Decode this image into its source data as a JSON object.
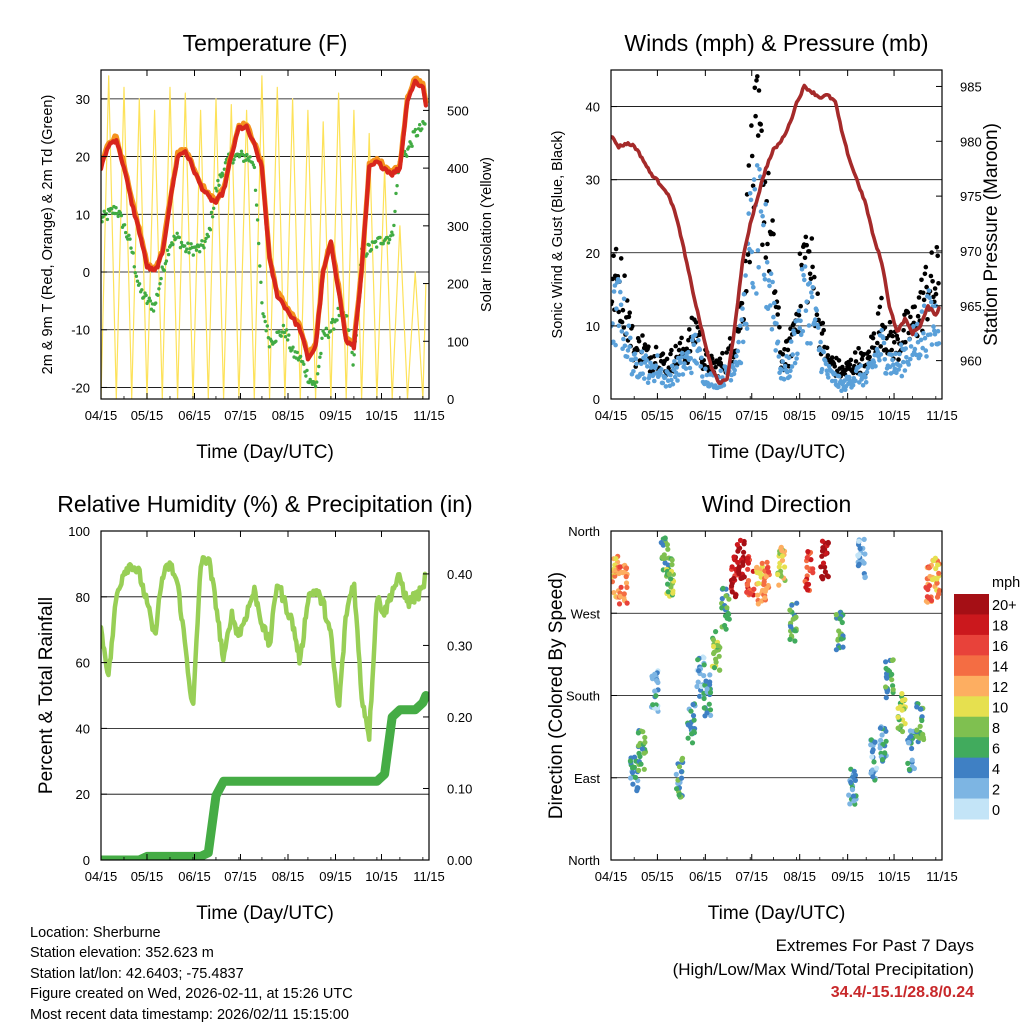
{
  "xtick_labels": [
    "04/15",
    "05/15",
    "06/15",
    "07/15",
    "08/15",
    "09/15",
    "10/15",
    "11/15"
  ],
  "xlabel": "Time (Day/UTC)",
  "colors": {
    "t2m": "#d8261c",
    "t9m": "#f5921e",
    "td": "#41ab43",
    "solar": "#fde25a",
    "sonic": "#5aa0d9",
    "gust": "#000000",
    "pressure": "#a52a2a",
    "rh": "#98cf56",
    "rain": "#45ac45",
    "extremes": "#c8282a"
  },
  "chart_data": [
    {
      "id": "temperature",
      "type": "line",
      "title": "Temperature (F)",
      "ylabel": "2m & 9m T (Red, Orange) & 2m Td (Green)",
      "y2label": "Solar Insolation (Yellow)",
      "ylim": [
        -22,
        35
      ],
      "yticks": [
        -20,
        -10,
        0,
        10,
        20,
        30
      ],
      "y2lim": [
        0,
        570
      ],
      "y2ticks": [
        0,
        100,
        200,
        300,
        400,
        500
      ],
      "x_days": [
        0,
        5,
        10,
        15,
        20,
        25,
        30,
        35,
        40,
        45,
        50,
        55,
        60,
        65,
        70,
        75,
        80,
        85,
        90,
        95,
        100,
        105,
        110,
        115,
        120,
        125,
        130,
        135,
        140,
        145,
        150,
        155,
        160,
        165,
        170,
        175,
        180,
        185,
        190,
        195,
        200,
        205,
        210,
        212
      ],
      "series": [
        {
          "name": "2m T",
          "color": "#d8261c",
          "values": [
            18,
            22,
            23,
            18,
            12,
            7,
            1,
            0,
            3,
            12,
            20,
            21,
            18,
            15,
            13,
            12,
            14,
            20,
            25,
            25,
            22,
            18,
            2,
            -4,
            -6,
            -8,
            -10,
            -15,
            -13,
            0,
            5,
            -3,
            -12,
            -13,
            0,
            18,
            19,
            18,
            17,
            18,
            30,
            33,
            32,
            29
          ]
        },
        {
          "name": "9m T",
          "color": "#f5921e",
          "values": [
            18.5,
            22.5,
            23.5,
            18.5,
            12.5,
            7.5,
            1.5,
            0.5,
            3.5,
            12.5,
            20.5,
            21.5,
            18.5,
            15.5,
            13.5,
            12.5,
            14.5,
            20.5,
            25.5,
            25.5,
            22.5,
            18.5,
            2.5,
            -3.5,
            -5.5,
            -7.5,
            -9.5,
            -14.5,
            -12.5,
            0.5,
            5.5,
            -2.5,
            -11.5,
            -12.5,
            0.5,
            18.5,
            19.5,
            18.5,
            17.5,
            18.5,
            30.5,
            33.5,
            32.5,
            29.5
          ]
        },
        {
          "name": "2m Td",
          "color": "#41ab43",
          "values": [
            9,
            10,
            11,
            8,
            4,
            -3,
            -5,
            -6,
            0,
            5,
            6,
            4,
            4,
            4,
            6,
            14,
            18,
            20,
            20,
            20,
            19,
            -6,
            -12,
            -11,
            -10,
            -14,
            -15,
            -18,
            -20,
            -11,
            -10,
            -7,
            -8,
            -16,
            3,
            4,
            5,
            6,
            6,
            20,
            21,
            24,
            25,
            26
          ]
        },
        {
          "name": "Solar Insolation",
          "color": "#fde25a",
          "values": [
            0,
            560,
            0,
            540,
            0,
            520,
            0,
            500,
            0,
            540,
            0,
            530,
            0,
            500,
            0,
            520,
            0,
            510,
            0,
            500,
            0,
            560,
            0,
            540,
            0,
            520,
            0,
            500,
            0,
            480,
            0,
            530,
            0,
            500,
            0,
            460,
            0,
            400,
            0,
            300,
            0,
            220,
            0,
            200
          ]
        }
      ]
    },
    {
      "id": "winds",
      "type": "scatter+line",
      "title": "Winds (mph) & Pressure (mb)",
      "ylabel": "Sonic Wind & Gust (Blue, Black)",
      "y2label": "Station Pressure (Maroon)",
      "ylim": [
        0,
        45
      ],
      "yticks": [
        0,
        10,
        20,
        30,
        40
      ],
      "y2lim": [
        956.5,
        986.5
      ],
      "y2ticks": [
        960,
        965,
        970,
        975,
        980,
        985
      ],
      "x_days": [
        0,
        5,
        10,
        15,
        20,
        25,
        30,
        35,
        40,
        45,
        50,
        55,
        60,
        65,
        70,
        75,
        80,
        85,
        90,
        95,
        100,
        105,
        110,
        115,
        120,
        125,
        130,
        135,
        140,
        145,
        150,
        155,
        160,
        165,
        170,
        175,
        180,
        185,
        190,
        195,
        200,
        205,
        210,
        212
      ],
      "series": [
        {
          "name": "Sonic Wind",
          "color": "#5aa0d9",
          "values": [
            12,
            14,
            10,
            5,
            6,
            4,
            5,
            3,
            4,
            5,
            6,
            8,
            4,
            3,
            3,
            4,
            6,
            10,
            24,
            26,
            22,
            15,
            4,
            5,
            10,
            16,
            14,
            8,
            4,
            3,
            2,
            3,
            4,
            3,
            6,
            8,
            6,
            5,
            7,
            8,
            10,
            12,
            12,
            14
          ]
        },
        {
          "name": "Gust",
          "color": "#000000",
          "values": [
            17,
            18,
            14,
            7,
            8,
            6,
            7,
            5,
            6,
            7,
            8,
            11,
            6,
            5,
            5,
            6,
            9,
            14,
            32,
            38,
            30,
            20,
            6,
            7,
            13,
            22,
            19,
            11,
            6,
            5,
            4,
            5,
            6,
            5,
            9,
            12,
            9,
            8,
            10,
            11,
            14,
            17,
            17,
            19
          ]
        },
        {
          "name": "Station Pressure",
          "color": "#a52a2a",
          "values": [
            980.5,
            979.5,
            979.8,
            979.6,
            978.5,
            977.2,
            976.4,
            975.6,
            974.2,
            971.5,
            968.2,
            965,
            962,
            959.3,
            958,
            958.2,
            963,
            969,
            972.5,
            975,
            977.5,
            979.2,
            980,
            981.4,
            983.5,
            985,
            984.5,
            984,
            984.2,
            983.6,
            980.4,
            978,
            976.1,
            974.1,
            971.1,
            969,
            965,
            962.6,
            963.8,
            962.5,
            963.2,
            964.9,
            964.2,
            964.8
          ]
        }
      ]
    },
    {
      "id": "humidity",
      "type": "line",
      "title": "Relative Humidity (%) & Precipitation (in)",
      "ylabel": "Percent & Total Rainfall",
      "ylim": [
        0,
        100
      ],
      "yticks": [
        0,
        20,
        40,
        60,
        80,
        100
      ],
      "y2lim": [
        0,
        0.46
      ],
      "y2ticks": [
        0.0,
        0.1,
        0.2,
        0.3,
        0.4
      ],
      "y2tick_labels": [
        "0.00",
        "0.10",
        "0.20",
        "0.30",
        "0.40"
      ],
      "x_days": [
        0,
        5,
        10,
        15,
        20,
        25,
        30,
        35,
        40,
        45,
        50,
        55,
        60,
        65,
        70,
        75,
        80,
        85,
        90,
        95,
        100,
        105,
        110,
        115,
        120,
        125,
        130,
        135,
        140,
        145,
        150,
        155,
        160,
        165,
        170,
        175,
        180,
        185,
        190,
        195,
        200,
        205,
        210,
        212
      ],
      "series": [
        {
          "name": "Relative Humidity",
          "color": "#98cf56",
          "values": [
            70,
            56,
            80,
            88,
            90,
            87,
            78,
            68,
            86,
            90,
            84,
            65,
            45,
            90,
            92,
            78,
            60,
            75,
            68,
            75,
            82,
            72,
            65,
            85,
            78,
            72,
            60,
            80,
            82,
            78,
            68,
            45,
            75,
            85,
            50,
            38,
            80,
            75,
            82,
            86,
            78,
            80,
            82,
            88
          ]
        },
        {
          "name": "Total Rainfall",
          "color": "#45ac45",
          "values": [
            0,
            0,
            0,
            0,
            0,
            0,
            0.005,
            0.005,
            0.005,
            0.005,
            0.005,
            0.005,
            0.005,
            0.005,
            0.01,
            0.09,
            0.11,
            0.11,
            0.11,
            0.11,
            0.11,
            0.11,
            0.11,
            0.11,
            0.11,
            0.11,
            0.11,
            0.11,
            0.11,
            0.11,
            0.11,
            0.11,
            0.11,
            0.11,
            0.11,
            0.11,
            0.11,
            0.12,
            0.2,
            0.21,
            0.21,
            0.21,
            0.22,
            0.23
          ]
        }
      ]
    },
    {
      "id": "wind_direction",
      "type": "scatter",
      "title": "Wind Direction",
      "ylabel": "Direction (Colored By Speed)",
      "yticks": [
        0,
        90,
        180,
        270,
        360
      ],
      "ytick_labels": [
        "North",
        "East",
        "South",
        "West",
        "North"
      ],
      "ylim": [
        0,
        360
      ],
      "colorbar": {
        "title": "mph",
        "labels": [
          "20+",
          "18",
          "16",
          "14",
          "12",
          "10",
          "8",
          "6",
          "4",
          "2",
          "0"
        ],
        "colors": [
          "#a50f15",
          "#cb181d",
          "#e8423a",
          "#f46d43",
          "#fdae61",
          "#e6e04f",
          "#7fc050",
          "#41ab5d",
          "#3f80c4",
          "#7db5e3",
          "#c3e4f7"
        ]
      },
      "x_days": [
        3,
        8,
        15,
        20,
        28,
        35,
        38,
        44,
        52,
        58,
        62,
        68,
        74,
        80,
        84,
        90,
        96,
        100,
        110,
        118,
        128,
        138,
        148,
        156,
        162,
        170,
        176,
        180,
        188,
        194,
        200,
        206,
        210
      ],
      "values": [
        310,
        300,
        95,
        120,
        185,
        330,
        310,
        90,
        150,
        200,
        180,
        230,
        275,
        310,
        330,
        310,
        300,
        305,
        320,
        260,
        315,
        330,
        250,
        80,
        330,
        110,
        130,
        200,
        160,
        120,
        150,
        300,
        310
      ],
      "speeds": [
        12,
        14,
        4,
        6,
        3,
        6,
        8,
        5,
        4,
        3,
        4,
        8,
        6,
        18,
        20,
        16,
        12,
        14,
        10,
        6,
        16,
        20,
        6,
        4,
        2,
        3,
        4,
        6,
        8,
        4,
        6,
        14,
        12
      ]
    }
  ],
  "info": {
    "location": "Location: Sherburne",
    "elevation": "Station elevation: 352.623 m",
    "latlon": "Station lat/lon: 42.6403; -75.4837",
    "created": "Figure created on Wed, 2026-02-11, at 15:26 UTC",
    "timestamp": "Most recent data timestamp: 2026/02/11 15:15:00"
  },
  "extremes": {
    "title": "Extremes For Past 7 Days",
    "subtitle": "(High/Low/Max Wind/Total Precipitation)",
    "values": "34.4/-15.1/28.8/0.24"
  }
}
